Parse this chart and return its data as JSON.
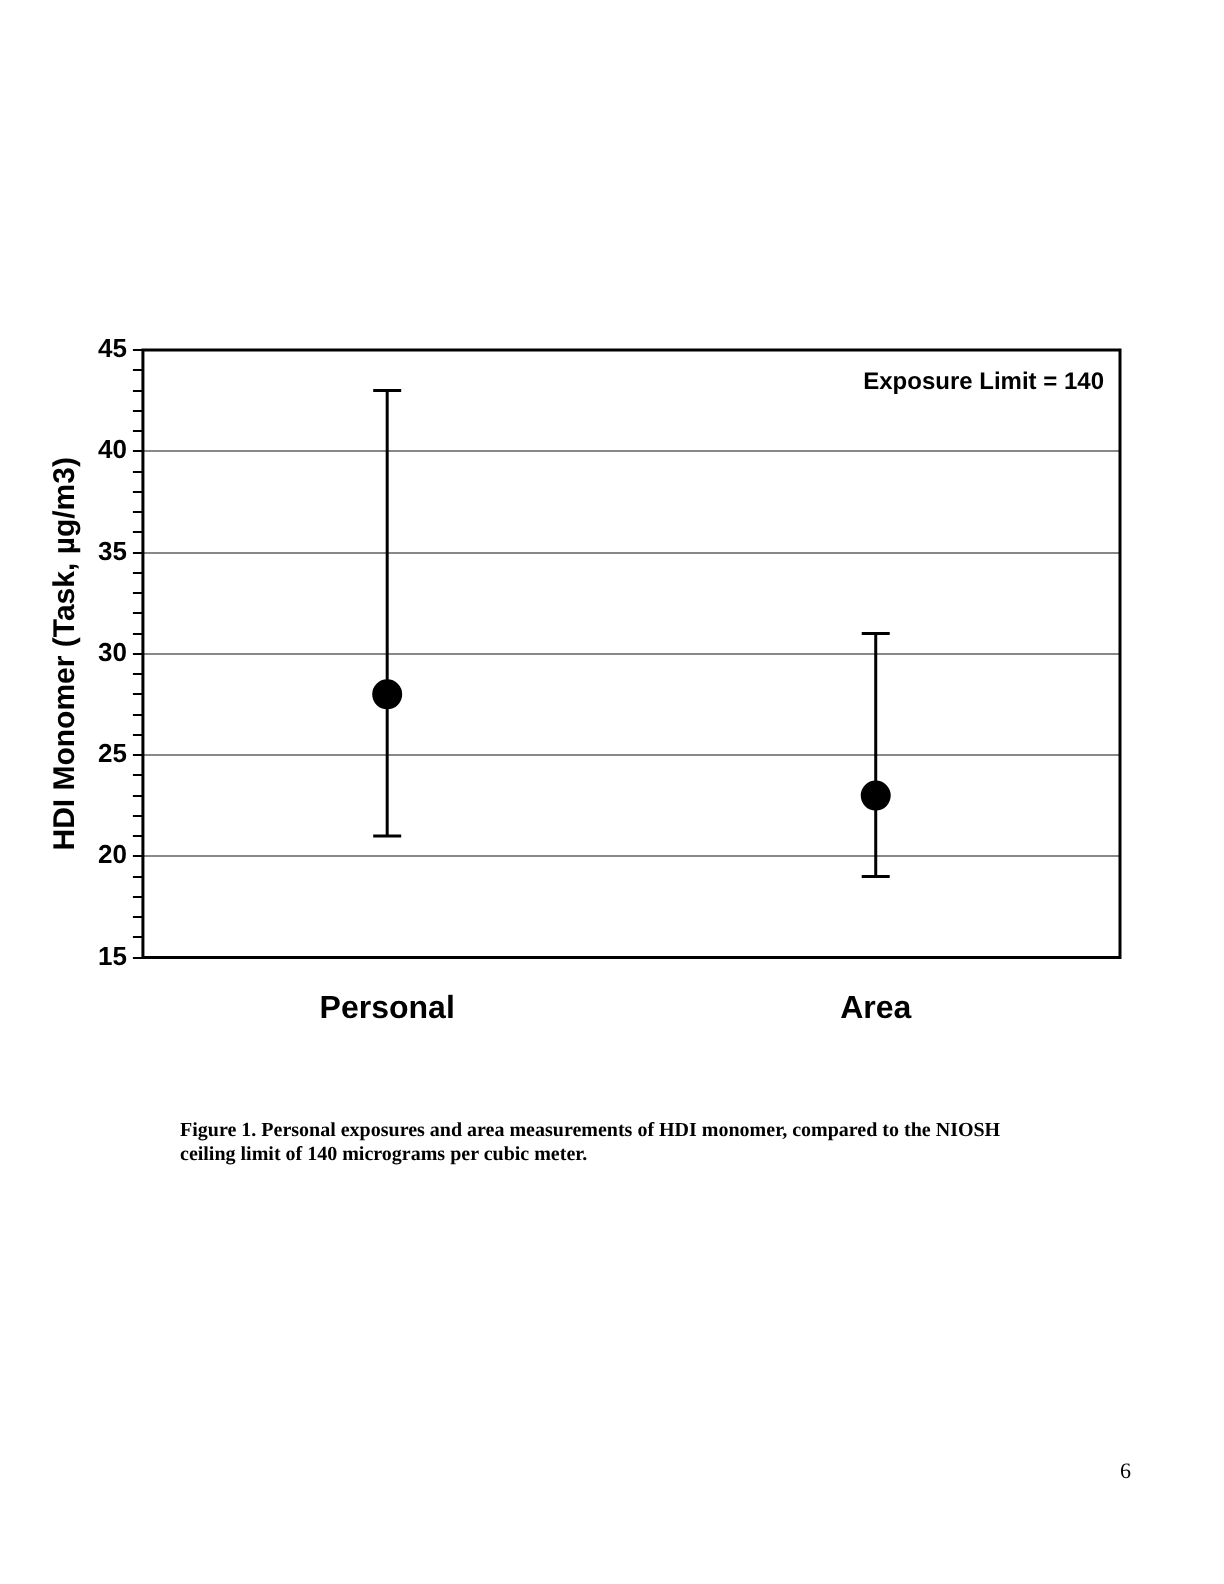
{
  "chart_data": {
    "type": "scatter",
    "ylabel": "HDI Monomer (Task, µg/m3)",
    "categories": [
      "Personal",
      "Area"
    ],
    "series": [
      {
        "color": "#000000",
        "values": [
          28,
          23
        ],
        "errors": [
          [
            21,
            43
          ],
          [
            19,
            31
          ]
        ]
      }
    ],
    "ylim": [
      15,
      45
    ],
    "yticks": [
      15,
      {
        "value": 16,
        "label": null
      },
      {
        "value": 17,
        "label": null
      },
      {
        "value": 18,
        "label": null
      },
      {
        "value": 19,
        "label": null
      },
      20,
      {
        "value": 21,
        "label": null
      },
      {
        "value": 22,
        "label": null
      },
      {
        "value": 23,
        "label": null
      },
      {
        "value": 24,
        "label": null
      },
      25,
      {
        "value": 26,
        "label": null
      },
      {
        "value": 27,
        "label": null
      },
      {
        "value": 28,
        "label": null
      },
      {
        "value": 29,
        "label": null
      },
      30,
      {
        "value": 31,
        "label": null
      },
      {
        "value": 32,
        "label": null
      },
      {
        "value": 33,
        "label": null
      },
      {
        "value": 34,
        "label": null
      },
      35,
      {
        "value": 36,
        "label": null
      },
      {
        "value": 37,
        "label": null
      },
      {
        "value": 38,
        "label": null
      },
      {
        "value": 39,
        "label": null
      },
      40,
      {
        "value": 41,
        "label": null
      },
      {
        "value": 42,
        "label": null
      },
      {
        "value": 43,
        "label": null
      },
      {
        "value": 44,
        "label": null
      },
      45
    ],
    "grid": "y",
    "marker": "circle",
    "annotations": [
      "Exposure Limit = 140",
      "Figure 1.  Personal exposures and area measurements of HDI monomer, compared to the NIOSH ceiling limit of 140 micrograms per cubic meter.",
      "6"
    ]
  }
}
